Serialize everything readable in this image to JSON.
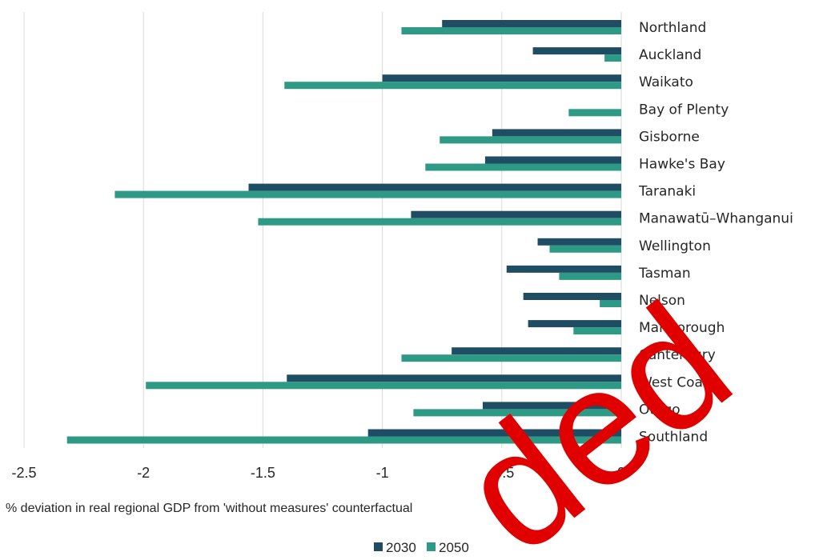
{
  "chart_data": {
    "type": "bar",
    "orientation": "horizontal",
    "categories": [
      "Northland",
      "Auckland",
      "Waikato",
      "Bay of Plenty",
      "Gisborne",
      "Hawke's Bay",
      "Taranaki",
      "Manawatū–Whanganui",
      "Wellington",
      "Tasman",
      "Nelson",
      "Marlborough",
      "Canterbury",
      "West Coast",
      "Otago",
      "Southland"
    ],
    "series": [
      {
        "name": "2030",
        "color": "#1f4e64",
        "values": [
          -0.75,
          -0.37,
          -1.0,
          0.0,
          -0.54,
          -0.57,
          -1.56,
          -0.88,
          -0.35,
          -0.48,
          -0.41,
          -0.39,
          -0.71,
          -1.4,
          -0.58,
          -1.06
        ]
      },
      {
        "name": "2050",
        "color": "#2e9a86",
        "values": [
          -0.92,
          -0.07,
          -1.41,
          -0.22,
          -0.76,
          -0.82,
          -2.12,
          -1.52,
          -0.3,
          -0.26,
          -0.09,
          -0.2,
          -0.92,
          -1.99,
          -0.87,
          -2.32
        ]
      }
    ],
    "xlabel": "% deviation in real regional GDP from 'without measures' counterfactual",
    "ylabel": "",
    "xlim": [
      -2.5,
      0
    ],
    "xticks": [
      "-2.5",
      "-2",
      "-1.5",
      "-1",
      "-0.5",
      "0"
    ],
    "grid": "vertical",
    "legend_position": "bottom-center",
    "gridline_color": "#d9d9d9",
    "watermark_text": "ded",
    "watermark_color": "#e00000"
  }
}
